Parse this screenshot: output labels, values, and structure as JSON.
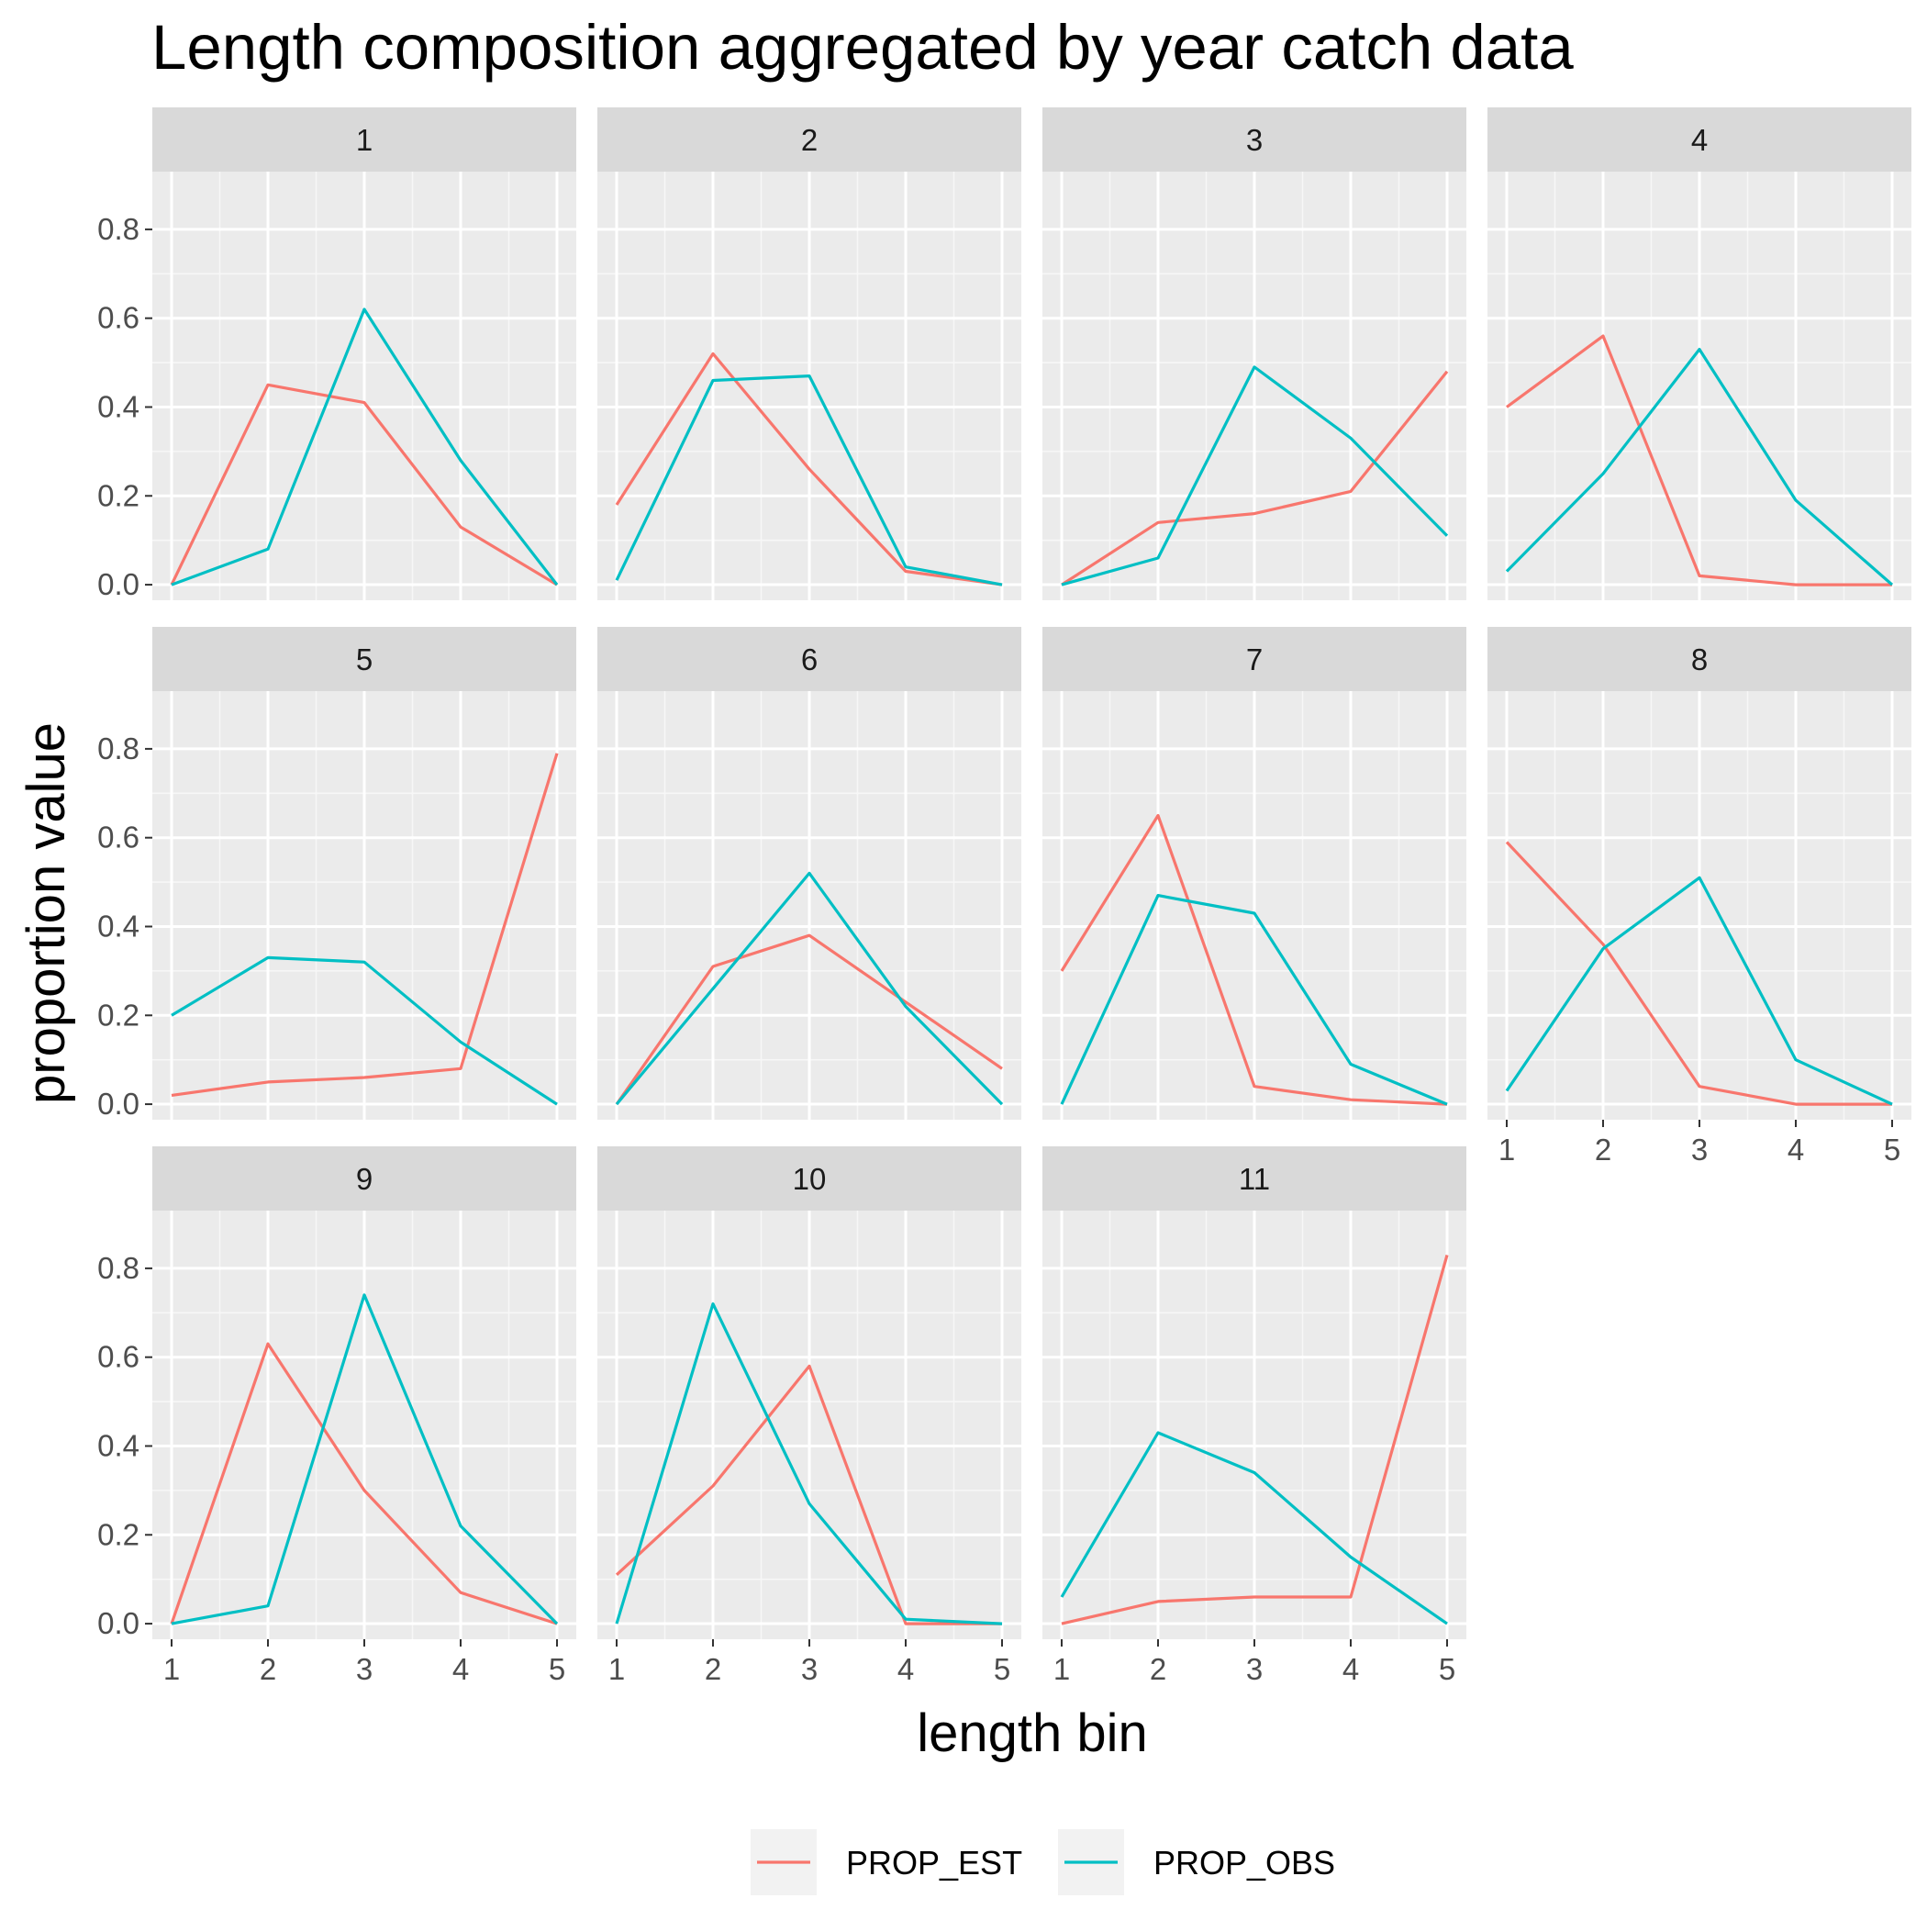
{
  "chart_data": {
    "type": "line",
    "title": "Length composition aggregated by year catch data",
    "xlabel": "length bin",
    "ylabel": "proportion value",
    "x": [
      1,
      2,
      3,
      4,
      5
    ],
    "x_ticks": [
      "1",
      "2",
      "3",
      "4",
      "5"
    ],
    "y_ticks": [
      "0.0",
      "0.2",
      "0.4",
      "0.6",
      "0.8"
    ],
    "ylim": [
      -0.035,
      0.93
    ],
    "grid": true,
    "legend_position": "bottom",
    "series_names": [
      "PROP_EST",
      "PROP_OBS"
    ],
    "colors": {
      "PROP_EST": "#F8766D",
      "PROP_OBS": "#00BFC4"
    },
    "facets": [
      {
        "label": "1",
        "PROP_EST": [
          0.0,
          0.45,
          0.41,
          0.13,
          0.0
        ],
        "PROP_OBS": [
          0.0,
          0.08,
          0.62,
          0.28,
          0.0
        ]
      },
      {
        "label": "2",
        "PROP_EST": [
          0.18,
          0.52,
          0.26,
          0.03,
          0.0
        ],
        "PROP_OBS": [
          0.01,
          0.46,
          0.47,
          0.04,
          0.0
        ]
      },
      {
        "label": "3",
        "PROP_EST": [
          0.0,
          0.14,
          0.16,
          0.21,
          0.48
        ],
        "PROP_OBS": [
          0.0,
          0.06,
          0.49,
          0.33,
          0.11
        ]
      },
      {
        "label": "4",
        "PROP_EST": [
          0.4,
          0.56,
          0.02,
          0.0,
          0.0
        ],
        "PROP_OBS": [
          0.03,
          0.25,
          0.53,
          0.19,
          0.0
        ]
      },
      {
        "label": "5",
        "PROP_EST": [
          0.02,
          0.05,
          0.06,
          0.08,
          0.79
        ],
        "PROP_OBS": [
          0.2,
          0.33,
          0.32,
          0.14,
          0.0
        ]
      },
      {
        "label": "6",
        "PROP_EST": [
          0.0,
          0.31,
          0.38,
          0.23,
          0.08
        ],
        "PROP_OBS": [
          0.0,
          0.26,
          0.52,
          0.22,
          0.0
        ]
      },
      {
        "label": "7",
        "PROP_EST": [
          0.3,
          0.65,
          0.04,
          0.01,
          0.0
        ],
        "PROP_OBS": [
          0.0,
          0.47,
          0.43,
          0.09,
          0.0
        ]
      },
      {
        "label": "8",
        "PROP_EST": [
          0.59,
          0.36,
          0.04,
          0.0,
          0.0
        ],
        "PROP_OBS": [
          0.03,
          0.35,
          0.51,
          0.1,
          0.0
        ]
      },
      {
        "label": "9",
        "PROP_EST": [
          0.0,
          0.63,
          0.3,
          0.07,
          0.0
        ],
        "PROP_OBS": [
          0.0,
          0.04,
          0.74,
          0.22,
          0.0
        ]
      },
      {
        "label": "10",
        "PROP_EST": [
          0.11,
          0.31,
          0.58,
          0.0,
          0.0
        ],
        "PROP_OBS": [
          0.0,
          0.72,
          0.27,
          0.01,
          0.0
        ]
      },
      {
        "label": "11",
        "PROP_EST": [
          0.0,
          0.05,
          0.06,
          0.06,
          0.83
        ],
        "PROP_OBS": [
          0.06,
          0.43,
          0.34,
          0.15,
          0.0
        ]
      }
    ]
  }
}
